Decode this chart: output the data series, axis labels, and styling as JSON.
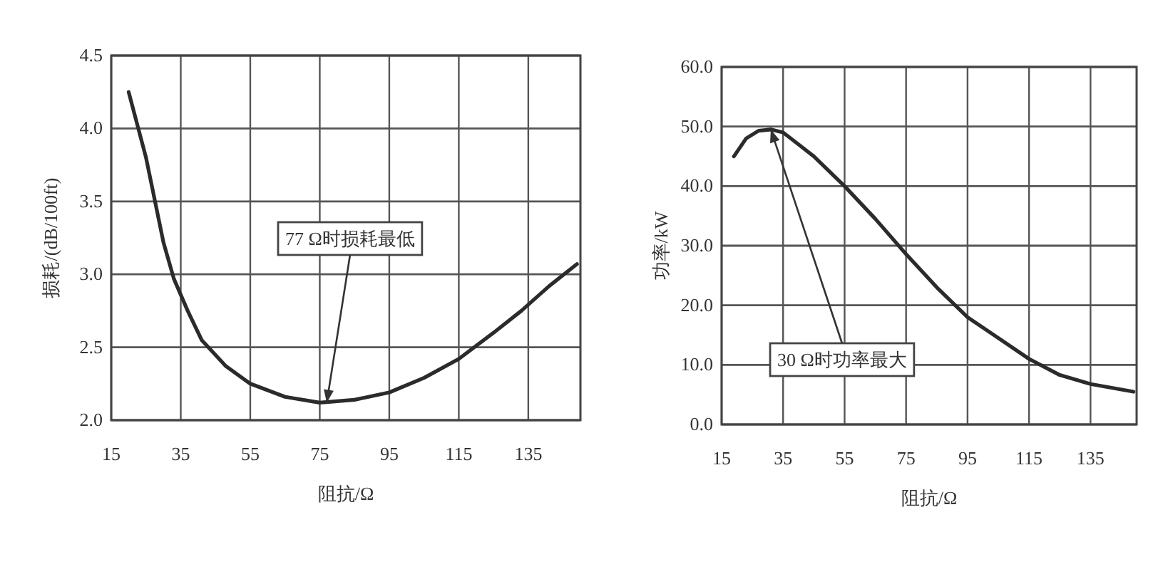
{
  "chart_data": [
    {
      "type": "line",
      "xlabel": "阻抗/Ω",
      "ylabel": "损耗/(dB/100ft)",
      "xlim": [
        15,
        150
      ],
      "ylim": [
        2.0,
        4.5
      ],
      "xticks": [
        15,
        35,
        55,
        75,
        95,
        115,
        135
      ],
      "yticks": [
        {
          "value": 2.0,
          "label": "2.0"
        },
        {
          "value": 2.5,
          "label": "2.5"
        },
        {
          "value": 3.0,
          "label": "3.0"
        },
        {
          "value": 3.5,
          "label": "3.5"
        },
        {
          "value": 4.0,
          "label": "4.0"
        },
        {
          "value": 4.5,
          "label": "4.5"
        }
      ],
      "grid": true,
      "marker": "none",
      "line_style": "solid",
      "series": [
        {
          "color": "#2b2b2b",
          "x": [
            20,
            25,
            30,
            33,
            37,
            41,
            48,
            55,
            65,
            75,
            85,
            95,
            105,
            115,
            125,
            133,
            141,
            149
          ],
          "values": [
            4.25,
            3.8,
            3.22,
            2.97,
            2.75,
            2.55,
            2.37,
            2.25,
            2.16,
            2.12,
            2.14,
            2.19,
            2.29,
            2.42,
            2.6,
            2.75,
            2.92,
            3.07
          ]
        }
      ],
      "annotations": [
        {
          "text": "77 Ω时损耗最低",
          "x": 77,
          "y": 2.12
        }
      ]
    },
    {
      "type": "line",
      "xlabel": "阻抗/Ω",
      "ylabel": "功率/kW",
      "xlim": [
        15,
        150
      ],
      "ylim": [
        0,
        60
      ],
      "xticks": [
        15,
        35,
        55,
        75,
        95,
        115,
        135
      ],
      "yticks": [
        {
          "value": 0,
          "label": "0.0"
        },
        {
          "value": 10,
          "label": "10.0"
        },
        {
          "value": 20,
          "label": "20.0"
        },
        {
          "value": 30,
          "label": "30.0"
        },
        {
          "value": 40,
          "label": "40.0"
        },
        {
          "value": 50,
          "label": "50.0"
        },
        {
          "value": 60,
          "label": "60.0"
        }
      ],
      "grid": true,
      "marker": "none",
      "line_style": "solid",
      "series": [
        {
          "color": "#2b2b2b",
          "x": [
            19,
            23,
            27,
            31,
            35,
            40,
            45,
            55,
            65,
            75,
            85,
            95,
            105,
            115,
            125,
            135,
            149
          ],
          "values": [
            45,
            48,
            49.3,
            49.5,
            49,
            47,
            45,
            40,
            34.5,
            28.6,
            23,
            18,
            14.5,
            11,
            8.3,
            6.8,
            5.5
          ]
        }
      ],
      "annotations": [
        {
          "text": "30 Ω时功率最大",
          "x": 31,
          "y": 49.5
        }
      ]
    }
  ]
}
